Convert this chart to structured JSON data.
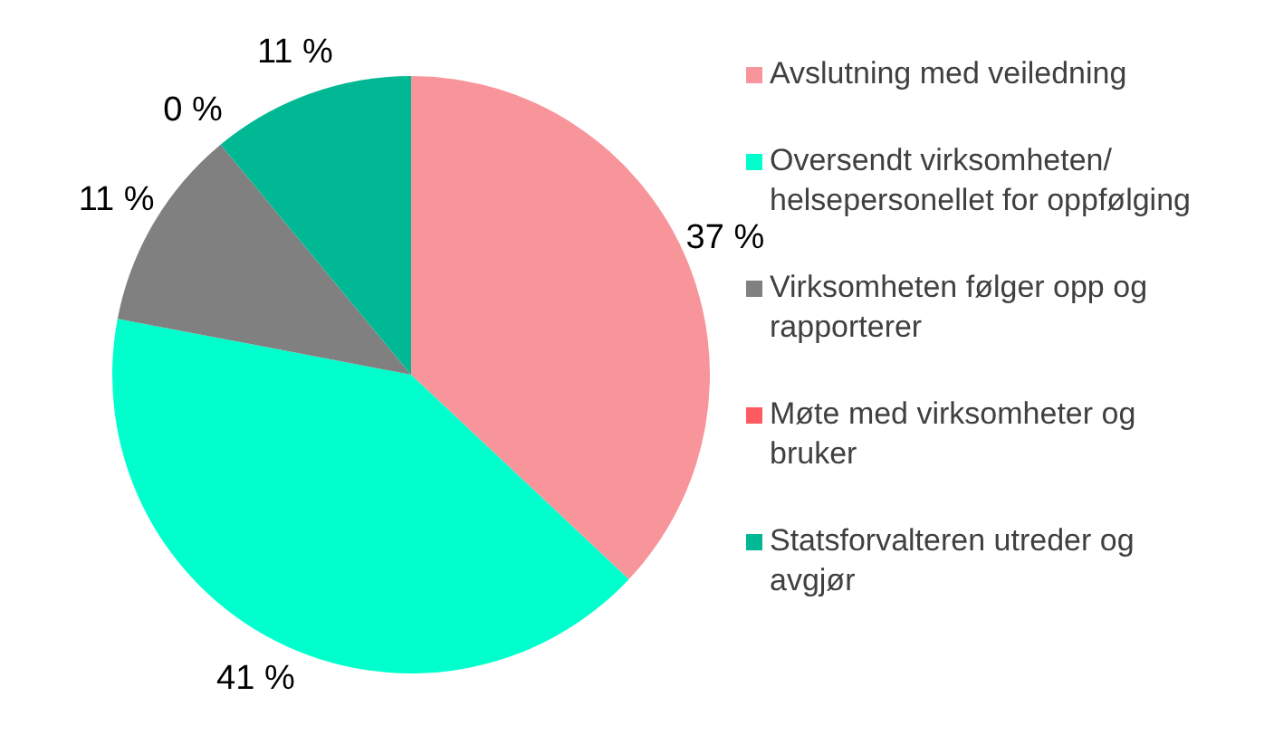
{
  "chart_data": {
    "type": "pie",
    "categories": [
      "Avslutning med veiledning",
      "Oversendt virksomheten/ helsepersonellet for oppfølging",
      "Virksomheten følger opp og rapporterer",
      "Møte med virksomheter og bruker",
      "Statsforvalteren utreder og avgjør"
    ],
    "values": [
      37,
      41,
      11,
      0,
      11
    ],
    "colors": [
      "#f8959a",
      "#00ffcc",
      "#808080",
      "#ff5a5f",
      "#00b894"
    ],
    "value_labels": [
      "37 %",
      "41 %",
      "11 %",
      "0 %",
      "11 %"
    ],
    "legend": "right"
  }
}
